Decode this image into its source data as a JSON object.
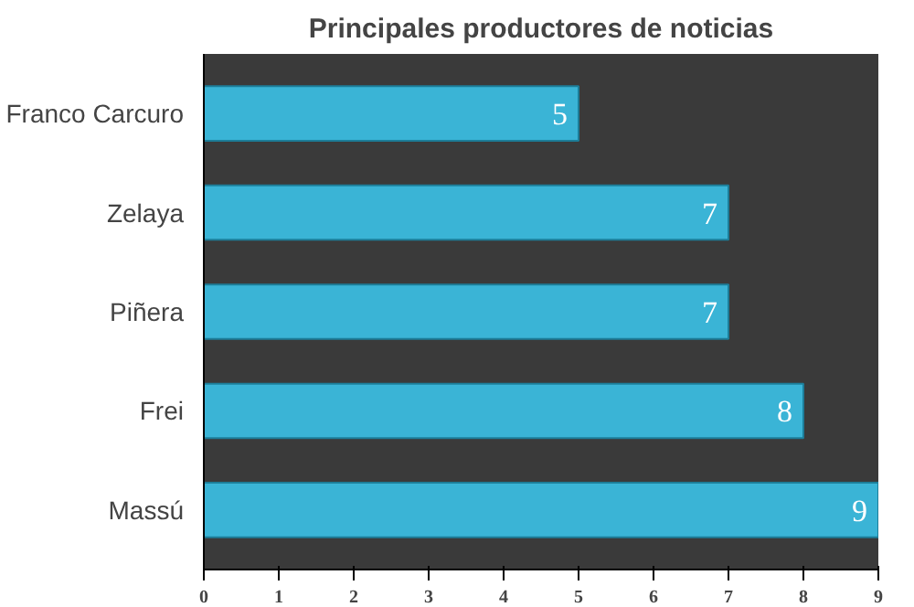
{
  "chart_data": {
    "type": "bar",
    "orientation": "horizontal",
    "title": "Principales productores de noticias",
    "categories": [
      "Franco Carcuro",
      "Zelaya",
      "Piñera",
      "Frei",
      "Massú"
    ],
    "values": [
      5,
      7,
      7,
      8,
      9
    ],
    "color": "#3ab4d6",
    "xlim": [
      0,
      9
    ],
    "xticks": [
      0,
      1,
      2,
      3,
      4,
      5,
      6,
      7,
      8,
      9
    ],
    "data_labels": true,
    "grid": false
  }
}
